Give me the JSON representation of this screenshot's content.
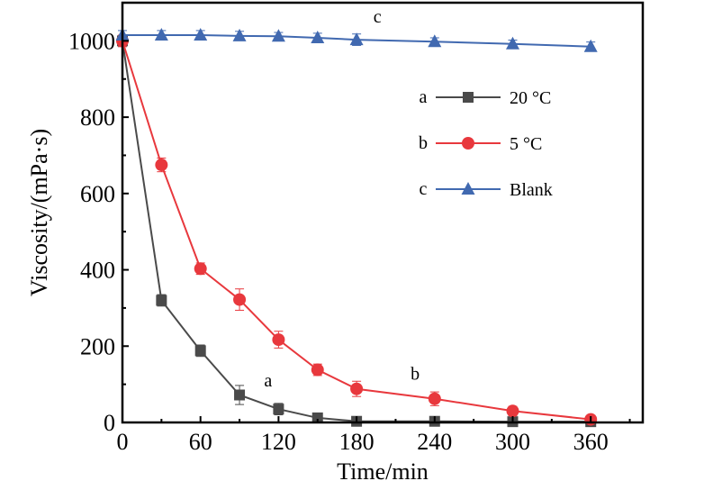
{
  "chart_data": {
    "type": "line",
    "xlabel": "Time/min",
    "ylabel": "Viscosity/(mPa·s)",
    "xlim": [
      0,
      400
    ],
    "ylim": [
      0,
      1100
    ],
    "xticks": [
      "0",
      "60",
      "120",
      "180",
      "240",
      "300",
      "360"
    ],
    "yticks": [
      "0",
      "200",
      "400",
      "600",
      "800",
      "1000"
    ],
    "grid": false,
    "legend_position": "upper-right",
    "x": [
      0,
      30,
      60,
      90,
      120,
      150,
      180,
      240,
      300,
      360
    ],
    "series": [
      {
        "name": "20 °C",
        "tag": "a",
        "marker": "square",
        "color": "#4a4a4a",
        "values": [
          1000,
          320,
          188,
          72,
          35,
          12,
          3,
          3,
          2,
          2
        ],
        "errors": [
          15,
          15,
          15,
          25,
          15,
          12,
          10,
          10,
          8,
          8
        ]
      },
      {
        "name": "5 °C",
        "tag": "b",
        "marker": "circle",
        "color": "#e8383d",
        "values": [
          1000,
          675,
          403,
          322,
          217,
          138,
          88,
          62,
          30,
          8
        ],
        "errors": [
          15,
          18,
          15,
          28,
          22,
          15,
          20,
          18,
          12,
          10
        ]
      },
      {
        "name": "Blank",
        "tag": "c",
        "marker": "triangle",
        "color": "#4169b0",
        "values": [
          1015,
          1015,
          1015,
          1013,
          1012,
          1008,
          1003,
          998,
          992,
          985
        ],
        "errors": [
          12,
          12,
          12,
          12,
          10,
          12,
          15,
          10,
          10,
          12
        ]
      }
    ],
    "annotations": [
      {
        "text": "a",
        "x": 112,
        "y": 95
      },
      {
        "text": "b",
        "x": 225,
        "y": 112
      },
      {
        "text": "c",
        "x": 196,
        "y": 1048
      }
    ]
  }
}
